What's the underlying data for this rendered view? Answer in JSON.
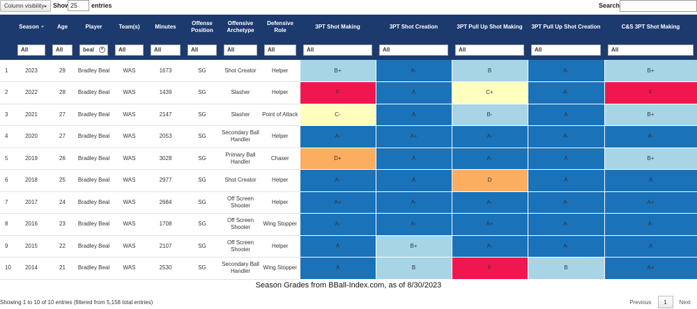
{
  "controls": {
    "column_visibility": "Column visibility",
    "show_label": "Show",
    "entries_value": "25",
    "entries_label": "entries",
    "search_label": "Search:",
    "search_value": ""
  },
  "columns": [
    {
      "key": "idx",
      "label": ""
    },
    {
      "key": "season",
      "label": "Season"
    },
    {
      "key": "age",
      "label": "Age"
    },
    {
      "key": "player",
      "label": "Player"
    },
    {
      "key": "team",
      "label": "Team(s)"
    },
    {
      "key": "minutes",
      "label": "Minutes"
    },
    {
      "key": "position",
      "label": "Offense Position"
    },
    {
      "key": "archetype",
      "label": "Offensive Archetype"
    },
    {
      "key": "role",
      "label": "Defensive Role"
    },
    {
      "key": "g1",
      "label": "3PT Shot Making"
    },
    {
      "key": "g2",
      "label": "3PT Shot Creation"
    },
    {
      "key": "g3",
      "label": "3PT Pull Up Shot Making"
    },
    {
      "key": "g4",
      "label": "3PT Pull Up Shot Creation"
    },
    {
      "key": "g5",
      "label": "C&S 3PT Shot Making"
    }
  ],
  "filters": [
    "All",
    "All",
    "beal",
    "All",
    "All",
    "All",
    "All",
    "All",
    "All",
    "All",
    "All",
    "All",
    "All"
  ],
  "colors": {
    "dark_blue": "#1a72b9",
    "light_blue": "#a7d5e6",
    "cream": "#fefebf",
    "orange": "#fbad60",
    "red": "#f0174f",
    "header": "#1c3a6e"
  },
  "rows": [
    {
      "idx": "1",
      "season": "2023",
      "age": "29",
      "player": "Bradley Beal",
      "team": "WAS",
      "minutes": "1673",
      "position": "SG",
      "archetype": "Shot Creator",
      "role": "Helper",
      "grades": [
        [
          "B+",
          "light_blue"
        ],
        [
          "A-",
          "dark_blue"
        ],
        [
          "B",
          "light_blue"
        ],
        [
          "A-",
          "dark_blue"
        ],
        [
          "B+",
          "light_blue"
        ]
      ]
    },
    {
      "idx": "2",
      "season": "2022",
      "age": "28",
      "player": "Bradley Beal",
      "team": "WAS",
      "minutes": "1439",
      "position": "SG",
      "archetype": "Slasher",
      "role": "Helper",
      "grades": [
        [
          "F",
          "red"
        ],
        [
          "A",
          "dark_blue"
        ],
        [
          "C+",
          "cream"
        ],
        [
          "A-",
          "dark_blue"
        ],
        [
          "F",
          "red"
        ]
      ]
    },
    {
      "idx": "3",
      "season": "2021",
      "age": "27",
      "player": "Bradley Beal",
      "team": "WAS",
      "minutes": "2147",
      "position": "SG",
      "archetype": "Slasher",
      "role": "Point of Attack",
      "grades": [
        [
          "C-",
          "cream"
        ],
        [
          "A",
          "dark_blue"
        ],
        [
          "B-",
          "light_blue"
        ],
        [
          "A",
          "dark_blue"
        ],
        [
          "B+",
          "light_blue"
        ]
      ]
    },
    {
      "idx": "4",
      "season": "2020",
      "age": "27",
      "player": "Bradley Beal",
      "team": "WAS",
      "minutes": "2053",
      "position": "SG",
      "archetype": "Secondary Ball Handler",
      "role": "Helper",
      "grades": [
        [
          "A-",
          "dark_blue"
        ],
        [
          "A+",
          "dark_blue"
        ],
        [
          "A-",
          "dark_blue"
        ],
        [
          "A-",
          "dark_blue"
        ],
        [
          "A-",
          "dark_blue"
        ]
      ]
    },
    {
      "idx": "5",
      "season": "2019",
      "age": "26",
      "player": "Bradley Beal",
      "team": "WAS",
      "minutes": "3028",
      "position": "SG",
      "archetype": "Primary Ball Handler",
      "role": "Chaser",
      "grades": [
        [
          "D+",
          "orange"
        ],
        [
          "A",
          "dark_blue"
        ],
        [
          "A-",
          "dark_blue"
        ],
        [
          "A",
          "dark_blue"
        ],
        [
          "B+",
          "light_blue"
        ]
      ]
    },
    {
      "idx": "6",
      "season": "2018",
      "age": "25",
      "player": "Bradley Beal",
      "team": "WAS",
      "minutes": "2977",
      "position": "SG",
      "archetype": "Shot Creator",
      "role": "Helper",
      "grades": [
        [
          "A-",
          "dark_blue"
        ],
        [
          "A",
          "dark_blue"
        ],
        [
          "D",
          "orange"
        ],
        [
          "A",
          "dark_blue"
        ],
        [
          "A",
          "dark_blue"
        ]
      ]
    },
    {
      "idx": "7",
      "season": "2017",
      "age": "24",
      "player": "Bradley Beal",
      "team": "WAS",
      "minutes": "2684",
      "position": "SG",
      "archetype": "Off Screen Shooter",
      "role": "Helper",
      "grades": [
        [
          "A+",
          "dark_blue"
        ],
        [
          "A-",
          "dark_blue"
        ],
        [
          "A-",
          "dark_blue"
        ],
        [
          "A-",
          "dark_blue"
        ],
        [
          "A+",
          "dark_blue"
        ]
      ]
    },
    {
      "idx": "8",
      "season": "2016",
      "age": "23",
      "player": "Bradley Beal",
      "team": "WAS",
      "minutes": "1708",
      "position": "SG",
      "archetype": "Off Screen Shooter",
      "role": "Wing Stopper",
      "grades": [
        [
          "A-",
          "dark_blue"
        ],
        [
          "A-",
          "dark_blue"
        ],
        [
          "A+",
          "dark_blue"
        ],
        [
          "A-",
          "dark_blue"
        ],
        [
          "A-",
          "dark_blue"
        ]
      ]
    },
    {
      "idx": "9",
      "season": "2015",
      "age": "22",
      "player": "Bradley Beal",
      "team": "WAS",
      "minutes": "2107",
      "position": "SG",
      "archetype": "Off Screen Shooter",
      "role": "Helper",
      "grades": [
        [
          "A",
          "dark_blue"
        ],
        [
          "B+",
          "light_blue"
        ],
        [
          "A-",
          "dark_blue"
        ],
        [
          "A-",
          "dark_blue"
        ],
        [
          "A",
          "dark_blue"
        ]
      ]
    },
    {
      "idx": "10",
      "season": "2014",
      "age": "21",
      "player": "Bradley Beal",
      "team": "WAS",
      "minutes": "2530",
      "position": "SG",
      "archetype": "Secondary Ball Handler",
      "role": "Wing Stopper",
      "grades": [
        [
          "A",
          "dark_blue"
        ],
        [
          "B",
          "light_blue"
        ],
        [
          "F",
          "red"
        ],
        [
          "B",
          "light_blue"
        ],
        [
          "A+",
          "dark_blue"
        ]
      ]
    }
  ],
  "caption": "Season Grades from BBall-Index.com, as of 8/30/2023",
  "info": "Showing 1 to 10 of 10 entries (filtered from 5,158 total entries)",
  "pager": {
    "previous": "Previous",
    "page": "1",
    "next": "Next"
  }
}
